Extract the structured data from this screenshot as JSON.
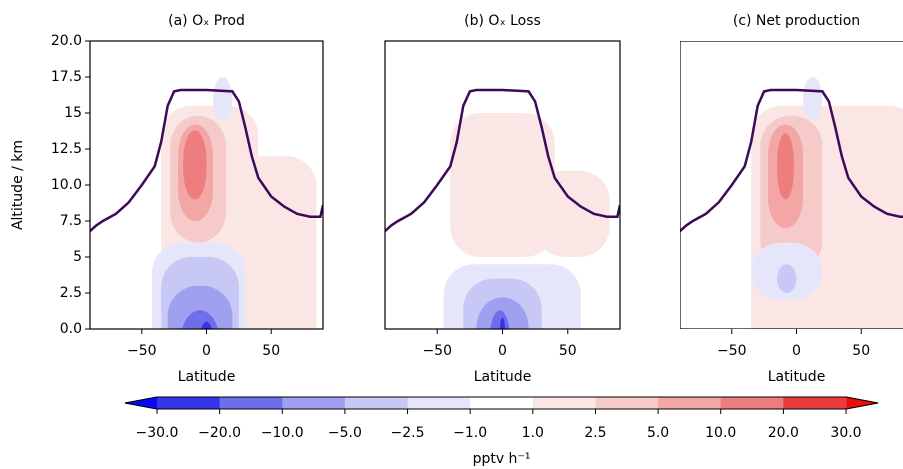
{
  "chart_data": [
    {
      "type": "contour",
      "title": "(a) Oₓ Prod",
      "xlabel": "Latitude",
      "ylabel": "Altitude / km",
      "xlim": [
        -90,
        90
      ],
      "ylim": [
        0,
        20
      ],
      "xticks": [
        {
          "value": -50,
          "label": "−50"
        },
        0,
        50
      ],
      "yticks": [
        {
          "value": 0,
          "label": "0.0"
        },
        2.5,
        5.0,
        7.5,
        {
          "value": 10,
          "label": "10.0"
        },
        12.5,
        15.0,
        17.5,
        {
          "value": 20,
          "label": "20.0"
        }
      ],
      "line": {
        "color": "#3b0a5a",
        "x": [
          -90,
          -85,
          -80,
          -70,
          -60,
          -50,
          -40,
          -35,
          -30,
          -25,
          -20,
          0,
          20,
          25,
          30,
          35,
          40,
          50,
          60,
          70,
          80,
          88,
          90
        ],
        "y": [
          6.8,
          7.2,
          7.5,
          8.0,
          8.8,
          10.0,
          11.3,
          13.0,
          15.5,
          16.5,
          16.6,
          16.6,
          16.5,
          15.8,
          14.0,
          12.0,
          10.5,
          9.2,
          8.5,
          8.0,
          7.8,
          7.8,
          8.6
        ]
      },
      "blobs": [
        {
          "level": 1.0,
          "x": [
            -35,
            40
          ],
          "y": [
            -2,
            15.5
          ]
        },
        {
          "level": 1.0,
          "x": [
            20,
            85
          ],
          "y": [
            -2,
            12
          ]
        },
        {
          "level": 2.5,
          "x": [
            -28,
            15
          ],
          "y": [
            6,
            14.8
          ]
        },
        {
          "level": 5.0,
          "x": [
            -22,
            5
          ],
          "y": [
            7.5,
            14.2
          ]
        },
        {
          "level": 10.0,
          "x": [
            -18,
            0
          ],
          "y": [
            9,
            13.8
          ]
        },
        {
          "level": -1.0,
          "x": [
            5,
            20
          ],
          "y": [
            14.5,
            17.5
          ]
        },
        {
          "level": -1.0,
          "x": [
            -42,
            30
          ],
          "y": [
            -3,
            6
          ]
        },
        {
          "level": -2.5,
          "x": [
            -35,
            25
          ],
          "y": [
            -3,
            5
          ]
        },
        {
          "level": -5.0,
          "x": [
            -30,
            20
          ],
          "y": [
            -3,
            3
          ]
        },
        {
          "level": -10.0,
          "x": [
            -20,
            10
          ],
          "y": [
            -3,
            1.3
          ]
        },
        {
          "level": -20.0,
          "x": [
            -6,
            6
          ],
          "y": [
            -3,
            0.5
          ]
        }
      ]
    },
    {
      "type": "contour",
      "title": "(b) Oₓ Loss",
      "xlabel": "Latitude",
      "xlim": [
        -90,
        90
      ],
      "ylim": [
        0,
        20
      ],
      "xticks": [
        {
          "value": -50,
          "label": "−50"
        },
        0,
        50
      ],
      "line": {
        "color": "#3b0a5a",
        "x": [
          -90,
          -85,
          -80,
          -70,
          -60,
          -50,
          -40,
          -35,
          -30,
          -25,
          -20,
          0,
          20,
          25,
          30,
          35,
          40,
          50,
          60,
          70,
          80,
          88,
          90
        ],
        "y": [
          6.8,
          7.2,
          7.5,
          8.0,
          8.8,
          10.0,
          11.3,
          13.0,
          15.5,
          16.5,
          16.6,
          16.6,
          16.5,
          15.8,
          14.0,
          12.0,
          10.5,
          9.2,
          8.5,
          8.0,
          7.8,
          7.8,
          8.6
        ]
      },
      "blobs": [
        {
          "level": 1.0,
          "x": [
            -40,
            40
          ],
          "y": [
            5,
            15
          ]
        },
        {
          "level": 1.0,
          "x": [
            25,
            82
          ],
          "y": [
            5,
            11
          ]
        },
        {
          "level": -1.0,
          "x": [
            -45,
            60
          ],
          "y": [
            -3,
            4.5
          ]
        },
        {
          "level": -2.5,
          "x": [
            -30,
            30
          ],
          "y": [
            -3,
            3.5
          ]
        },
        {
          "level": -5.0,
          "x": [
            -20,
            20
          ],
          "y": [
            -3,
            2.2
          ]
        },
        {
          "level": -10.0,
          "x": [
            -10,
            6
          ],
          "y": [
            -3,
            1.3
          ]
        },
        {
          "level": -20.0,
          "x": [
            -2,
            2
          ],
          "y": [
            -1,
            0.8
          ]
        }
      ]
    },
    {
      "type": "contour",
      "title": "(c) Net production",
      "xlabel": "Latitude",
      "xlim": [
        -90,
        90
      ],
      "ylim": [
        0,
        20
      ],
      "xticks": [
        {
          "value": -50,
          "label": "−50"
        },
        0,
        50
      ],
      "line": {
        "color": "#3b0a5a",
        "x": [
          -90,
          -85,
          -80,
          -70,
          -60,
          -50,
          -40,
          -35,
          -30,
          -25,
          -20,
          0,
          20,
          25,
          30,
          35,
          40,
          50,
          60,
          70,
          80,
          88,
          90
        ],
        "y": [
          6.8,
          7.2,
          7.5,
          8.0,
          8.8,
          10.0,
          11.3,
          13.0,
          15.5,
          16.5,
          16.6,
          16.6,
          16.5,
          15.8,
          14.0,
          12.0,
          10.5,
          9.2,
          8.5,
          8.0,
          7.8,
          7.8,
          8.6
        ]
      },
      "blobs": [
        {
          "level": 1.0,
          "x": [
            -35,
            95
          ],
          "y": [
            -2,
            15.5
          ]
        },
        {
          "level": 2.5,
          "x": [
            -28,
            20
          ],
          "y": [
            4,
            14.8
          ]
        },
        {
          "level": 5.0,
          "x": [
            -22,
            5
          ],
          "y": [
            7,
            14.2
          ]
        },
        {
          "level": 10.0,
          "x": [
            -15,
            -2
          ],
          "y": [
            9,
            13.6
          ]
        },
        {
          "level": -1.0,
          "x": [
            5,
            20
          ],
          "y": [
            14.5,
            17.5
          ]
        },
        {
          "level": -1.0,
          "x": [
            -35,
            20
          ],
          "y": [
            2,
            6
          ]
        },
        {
          "level": -2.5,
          "x": [
            -15,
            0
          ],
          "y": [
            2.5,
            4.5
          ]
        }
      ]
    },
    {
      "type": "colorbar",
      "label": "pptv h⁻¹",
      "boundaries": [
        {
          "value": -30,
          "label": "−30.0"
        },
        {
          "value": -20,
          "label": "−20.0"
        },
        {
          "value": -10,
          "label": "−10.0"
        },
        {
          "value": -5,
          "label": "−5.0"
        },
        {
          "value": -2.5,
          "label": "−2.5"
        },
        {
          "value": -1,
          "label": "−1.0"
        },
        {
          "value": 1,
          "label": "1.0"
        },
        {
          "value": 2.5,
          "label": "2.5"
        },
        {
          "value": 5,
          "label": "5.0"
        },
        {
          "value": 10,
          "label": "10.0"
        },
        {
          "value": 20,
          "label": "20.0"
        },
        {
          "value": 30,
          "label": "30.0"
        }
      ],
      "under": "#0a0af2",
      "over": "#ea0f0f",
      "colors": [
        "#3434e8",
        "#6e6eea",
        "#a0a0f0",
        "#c8c8f6",
        "#e6e6fb",
        "#ffffff",
        "#fbe6e6",
        "#f7caca",
        "#f2a6a6",
        "#ee7e7e",
        "#ea3c3c"
      ]
    }
  ]
}
